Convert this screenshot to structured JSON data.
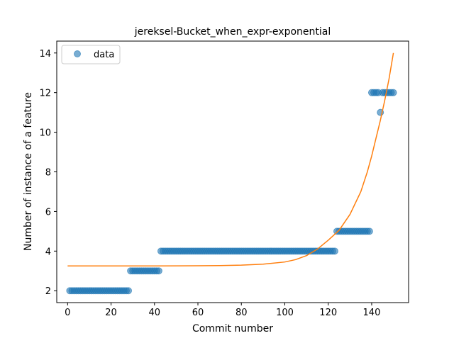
{
  "chart_data": {
    "type": "scatter",
    "title": "jereksel-Bucket_when_expr-exponential",
    "xlabel": "Commit number",
    "ylabel": "Number of instance of a feature",
    "xlim": [
      -5,
      157
    ],
    "ylim": [
      1.4,
      14.6
    ],
    "xticks": [
      0,
      20,
      40,
      60,
      80,
      100,
      120,
      140
    ],
    "yticks": [
      2,
      4,
      6,
      8,
      10,
      12,
      14
    ],
    "grid": false,
    "legend": {
      "position": "top-left",
      "entries": [
        "data"
      ]
    },
    "colors": {
      "data": "#1f77b4",
      "fit": "#ff7f0e"
    },
    "series": [
      {
        "name": "data",
        "kind": "scatter",
        "segments": [
          {
            "x_start": 1,
            "x_end": 28,
            "y": 2
          },
          {
            "x_start": 29,
            "x_end": 42,
            "y": 3
          },
          {
            "x_start": 43,
            "x_end": 123,
            "y": 4
          },
          {
            "x_start": 124,
            "x_end": 139,
            "y": 5
          },
          {
            "x_start": 140,
            "x_end": 143,
            "y": 12
          },
          {
            "x_start": 144,
            "x_end": 144,
            "y": 11
          },
          {
            "x_start": 145,
            "x_end": 150,
            "y": 12
          }
        ]
      },
      {
        "kind": "line",
        "x": [
          0,
          20,
          40,
          60,
          70,
          80,
          90,
          100,
          105,
          110,
          115,
          120,
          125,
          130,
          135,
          138,
          140,
          142,
          144,
          146,
          148,
          150
        ],
        "y": [
          3.25,
          3.25,
          3.25,
          3.26,
          3.27,
          3.29,
          3.34,
          3.45,
          3.57,
          3.77,
          4.1,
          4.55,
          5.05,
          5.85,
          7.0,
          8.0,
          8.8,
          9.7,
          10.6,
          11.6,
          12.7,
          14.0
        ]
      }
    ]
  }
}
